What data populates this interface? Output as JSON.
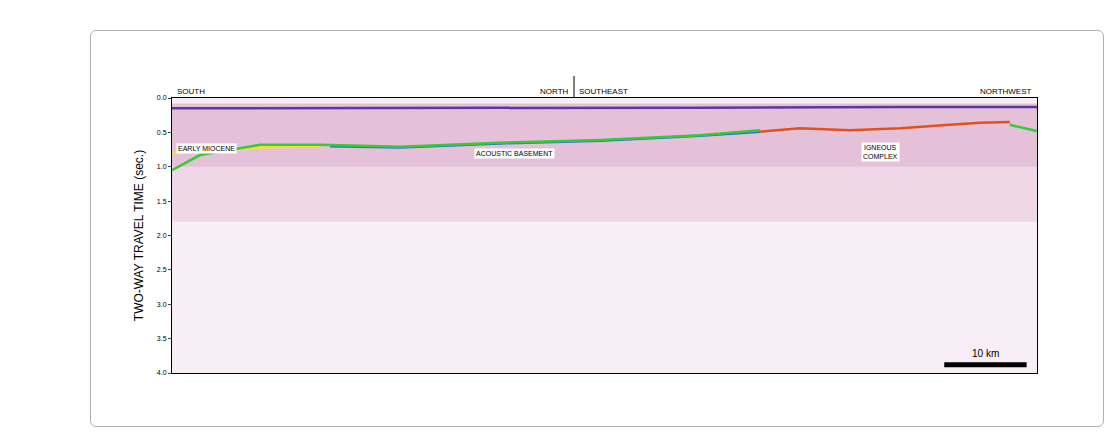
{
  "chart_data": {
    "type": "line",
    "y_label": "TWO-WAY TRAVEL TIME (sec.)",
    "xlim": [
      0,
      105
    ],
    "ylim": [
      0,
      4
    ],
    "yticks": [
      {
        "value": 0,
        "label": "0.0"
      },
      0.5,
      {
        "value": 1,
        "label": "1.0"
      },
      1.5,
      {
        "value": 2,
        "label": "2.0"
      },
      2.5,
      {
        "value": 3,
        "label": "3.0"
      },
      3.5,
      {
        "value": 4,
        "label": "4.0"
      }
    ],
    "tick_labels": "y",
    "grid": false,
    "series": [
      {
        "color": "#5b3a9e",
        "x": [
          0,
          18,
          39.8,
          64.1,
          88.4,
          105
        ],
        "values": [
          0.15,
          0.15,
          0.14,
          0.14,
          0.13,
          0.13
        ]
      },
      {
        "color": "#f2e23a",
        "x": [
          0,
          3.4,
          10.7,
          18
        ],
        "values": [
          0.8,
          0.78,
          0.72,
          0.69
        ]
      },
      {
        "color": "#2f6fd6",
        "x": [
          19.2,
          27.7,
          39.8,
          52,
          64.1,
          71.4
        ],
        "values": [
          0.7,
          0.72,
          0.66,
          0.62,
          0.55,
          0.49
        ]
      },
      {
        "color": "#33cc33",
        "x": [
          0,
          3.4,
          10.7,
          18,
          27.7,
          39.8,
          52,
          64.1,
          71.4
        ],
        "values": [
          1.05,
          0.83,
          0.68,
          0.68,
          0.71,
          0.65,
          0.61,
          0.54,
          0.47
        ]
      },
      {
        "color": "#e0521c",
        "x": [
          71.4,
          76.2,
          82.3,
          88.4,
          94.4,
          98.1,
          101.7
        ],
        "values": [
          0.49,
          0.44,
          0.47,
          0.44,
          0.39,
          0.36,
          0.35
        ]
      },
      {
        "color": "#33cc33",
        "x": [
          101.7,
          105
        ],
        "values": [
          0.39,
          0.48
        ]
      }
    ],
    "annotations": [
      {
        "lines": [
          "EARLY MIOCENE"
        ],
        "x": 0.5,
        "y": 0.73,
        "align": "left"
      },
      {
        "lines": [
          "ACOUSTIC BASEMENT"
        ],
        "x": 41.6,
        "y": 0.81,
        "align": "center"
      },
      {
        "lines": [
          "IGNEOUS",
          "COMPLEX"
        ],
        "x": 86,
        "y": 0.78,
        "align": "center"
      }
    ],
    "direction_labels": [
      {
        "text": "SOUTH",
        "x": 0,
        "align": "left"
      },
      {
        "text": "NORTH",
        "x": 48.8,
        "align": "right"
      },
      {
        "text": "SOUTHEAST",
        "x": 48.8,
        "align": "left"
      },
      {
        "text": "NORTHWEST",
        "x": 105,
        "align": "right"
      }
    ],
    "profile_bend": 48.8,
    "scale_bar": {
      "value": 10,
      "label": "10 km"
    }
  }
}
